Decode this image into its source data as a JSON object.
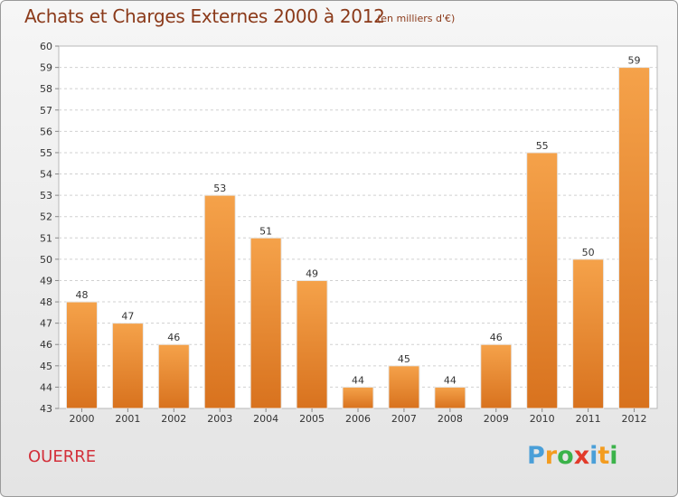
{
  "header": {
    "title": "Achats et Charges Externes 2000 à 2012",
    "subtitle": "(en milliers d'€)"
  },
  "footer": {
    "place": "OUERRE",
    "logo": {
      "letters": [
        "P",
        "r",
        "o",
        "x",
        "i",
        "t",
        "i"
      ],
      "colors": [
        "#4a9fd8",
        "#f39c20",
        "#3bb34a",
        "#e23a2a",
        "#4a9fd8",
        "#f39c20",
        "#3bb34a"
      ]
    }
  },
  "chart_data": {
    "type": "bar",
    "title": "Achats et Charges Externes 2000 à 2012",
    "subtitle": "(en milliers d'€)",
    "categories": [
      "2000",
      "2001",
      "2002",
      "2003",
      "2004",
      "2005",
      "2006",
      "2007",
      "2008",
      "2009",
      "2010",
      "2011",
      "2012"
    ],
    "values": [
      48,
      47,
      46,
      53,
      51,
      49,
      44,
      45,
      44,
      46,
      55,
      50,
      59
    ],
    "ylim": [
      43,
      60
    ],
    "yticks": [
      43,
      44,
      45,
      46,
      47,
      48,
      49,
      50,
      51,
      52,
      53,
      54,
      55,
      56,
      57,
      58,
      59,
      60
    ],
    "grid": true,
    "bar_color": "#f0923a",
    "bar_color_dark": "#d8721e",
    "xlabel": "",
    "ylabel": ""
  }
}
